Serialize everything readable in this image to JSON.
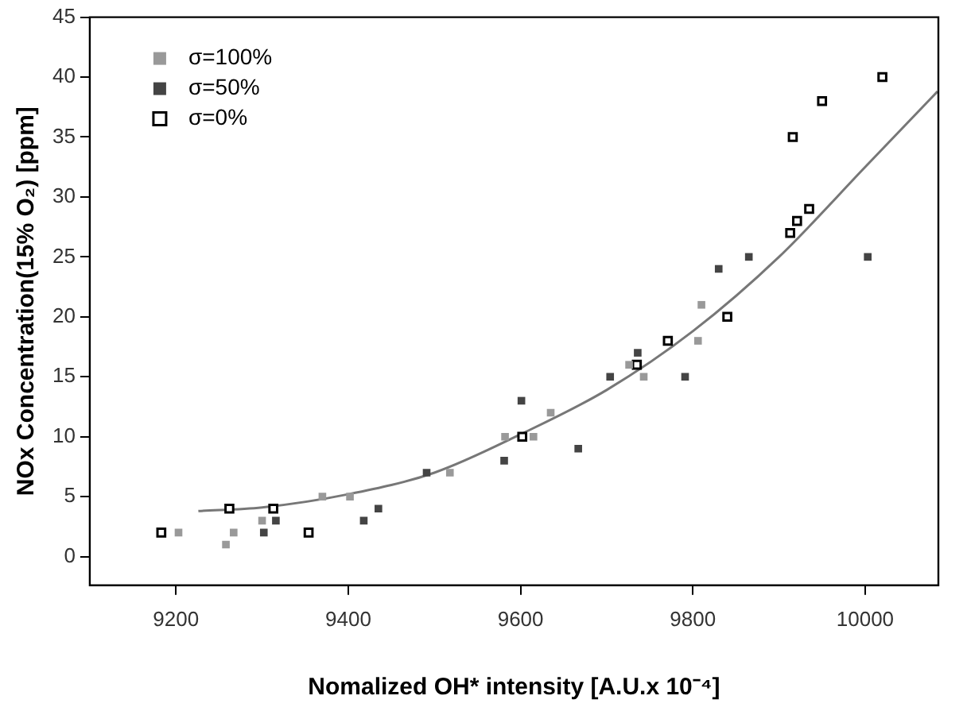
{
  "chart_data": {
    "type": "scatter",
    "xlabel": "Nomalized OH* intensity [A.U.x 10⁻⁴]",
    "ylabel": "NOx Concentration(15% O₂) [ppm]",
    "xlim": [
      9100,
      10085
    ],
    "xticks": [
      9200,
      9400,
      9600,
      9800,
      10000
    ],
    "ylim": [
      -2.4,
      45
    ],
    "yticks": [
      0,
      5,
      10,
      15,
      20,
      25,
      30,
      35,
      40,
      45
    ],
    "grid": false,
    "legend": "top left",
    "marker": "square",
    "series": [
      {
        "name": "σ=100%",
        "color": "#999999",
        "x": [
          9203,
          9258,
          9267,
          9300,
          9370,
          9402,
          9518,
          9582,
          9615,
          9635,
          9726,
          9743,
          9806,
          9810
        ],
        "values": [
          2,
          1,
          2,
          3,
          5,
          5,
          7,
          10,
          10,
          12,
          16,
          15,
          18,
          21
        ]
      },
      {
        "name": "σ=50%",
        "color": "#444444",
        "x": [
          9302,
          9316,
          9418,
          9435,
          9491,
          9581,
          9601,
          9667,
          9704,
          9736,
          9791,
          9830,
          9865,
          10003
        ],
        "values": [
          2,
          3,
          3,
          4,
          7,
          8,
          13,
          9,
          15,
          17,
          15,
          24,
          25,
          25
        ]
      },
      {
        "name": "σ=0%",
        "color": "#ffffff",
        "x": [
          9183,
          9262,
          9313,
          9354,
          9602,
          9735,
          9771,
          9840,
          9913,
          9921,
          9935,
          9916,
          9950,
          10020
        ],
        "values": [
          2,
          4,
          4,
          2,
          10,
          16,
          18,
          20,
          27,
          28,
          29,
          35,
          38,
          40
        ]
      },
      {
        "type": "line",
        "color": "#777777",
        "marker": "none",
        "x": [
          9226,
          9300,
          9400,
          9500,
          9600,
          9700,
          9800,
          9900,
          10000,
          10084
        ],
        "values": [
          3.8,
          4.1,
          5.2,
          7,
          10.2,
          13.9,
          18.8,
          25,
          32.5,
          38.8
        ]
      }
    ]
  }
}
